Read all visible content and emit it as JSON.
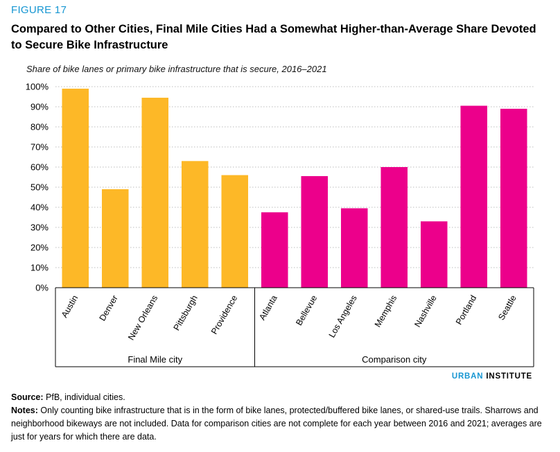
{
  "figure_label": "FIGURE 17",
  "title": "Compared to Other Cities, Final Mile Cities Had a Somewhat Higher-than-Average Share Devoted to Secure Bike Infrastructure",
  "subtitle": "Share of bike lanes or primary bike infrastructure that is secure, 2016–2021",
  "brand": {
    "part1": "URBAN",
    "part2": "INSTITUTE"
  },
  "source": {
    "label": "Source:",
    "text": "PfB, individual cities."
  },
  "notes": {
    "label": "Notes:",
    "text": "Only counting bike infrastructure that is in the form of bike lanes, protected/buffered bike lanes, or shared-use trails. Sharrows and neighborhood bikeways are not included. Data for comparison cities are not complete for each year between 2016 and 2021; averages are just for years for which there are data."
  },
  "colors": {
    "final_mile": "#fdb827",
    "comparison": "#ec008b",
    "grid": "#bdbdbd"
  },
  "chart_data": {
    "type": "bar",
    "title": "Compared to Other Cities, Final Mile Cities Had a Somewhat Higher-than-Average Share Devoted to Secure Bike Infrastructure",
    "ylabel": "Share of bike lanes or primary bike infrastructure that is secure, 2016–2021",
    "ylim": [
      0,
      100
    ],
    "yticks": [
      "0%",
      "10%",
      "20%",
      "30%",
      "40%",
      "50%",
      "60%",
      "70%",
      "80%",
      "90%",
      "100%"
    ],
    "grid": true,
    "groups": [
      {
        "label": "Final Mile city",
        "color": "#fdb827",
        "categories": [
          "Austin",
          "Denver",
          "New Orleans",
          "Pittsburgh",
          "Providence"
        ],
        "values": [
          99,
          49,
          94.5,
          63,
          56
        ]
      },
      {
        "label": "Comparison city",
        "color": "#ec008b",
        "categories": [
          "Atlanta",
          "Bellevue",
          "Los Angeles",
          "Memphis",
          "Nashville",
          "Portland",
          "Seattle"
        ],
        "values": [
          37.5,
          55.5,
          39.5,
          60,
          33,
          90.5,
          89
        ]
      }
    ]
  }
}
